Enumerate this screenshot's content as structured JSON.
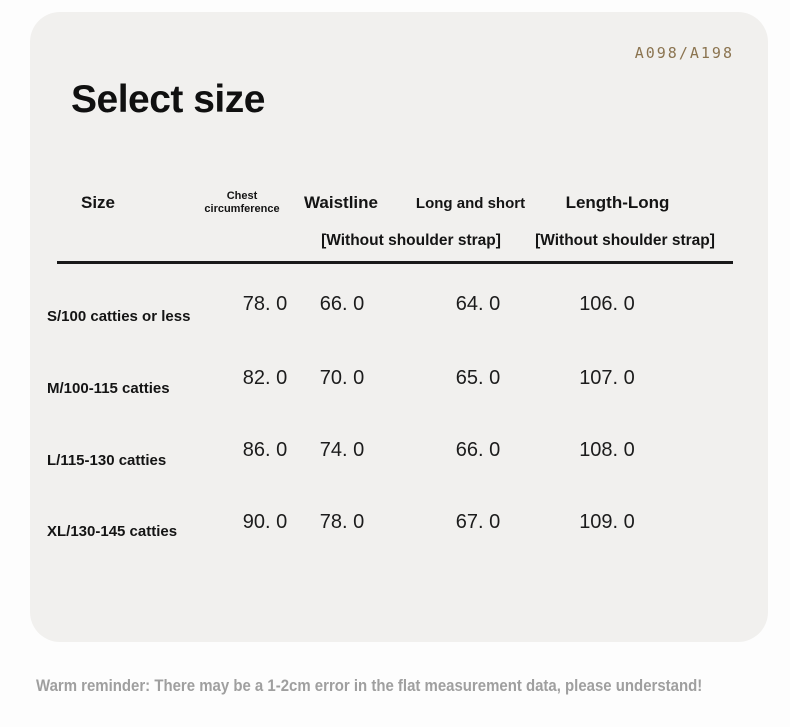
{
  "product_code": "A098/A198",
  "title": "Select size",
  "table": {
    "headers": {
      "size": "Size",
      "chest": "Chest circumference",
      "waistline": "Waistline",
      "long_short": "Long and short",
      "length_long": "Length-Long",
      "long_short_sub": "[Without shoulder strap]",
      "length_long_sub": "[Without shoulder strap]"
    },
    "rows": [
      {
        "size": "S/100 catties or less",
        "chest": "78. 0",
        "waistline": "66. 0",
        "long_short": "64. 0",
        "length_long": "106. 0"
      },
      {
        "size": "M/100-115 catties",
        "chest": "82. 0",
        "waistline": "70. 0",
        "long_short": "65. 0",
        "length_long": "107. 0"
      },
      {
        "size": "L/115-130 catties",
        "chest": "86. 0",
        "waistline": "74. 0",
        "long_short": "66. 0",
        "length_long": "108. 0"
      },
      {
        "size": "XL/130-145 catties",
        "chest": "90. 0",
        "waistline": "78. 0",
        "long_short": "67. 0",
        "length_long": "109. 0"
      }
    ]
  },
  "footer": {
    "reminder": "Warm reminder: There may be a 1-2cm error in the flat measurement data, please understand!"
  },
  "colors": {
    "page_background": "#fdfdfd",
    "card_background": "#f1f0ee",
    "product_code_text": "#8b7450",
    "table_text": "#141414",
    "divider": "#191919",
    "reminder_text": "#9f9f9f"
  }
}
